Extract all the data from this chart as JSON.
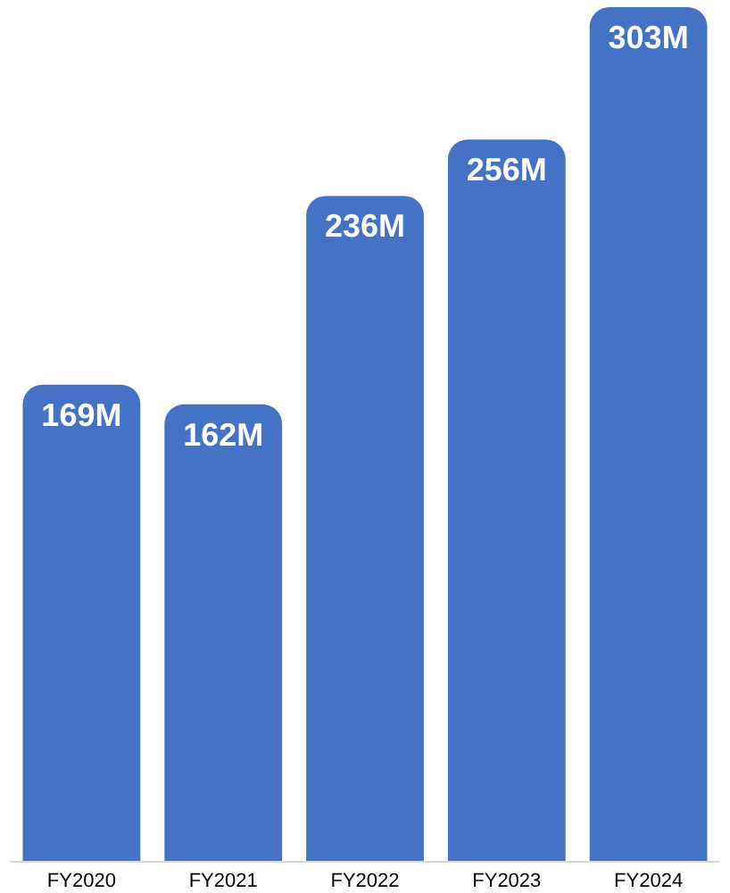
{
  "chart_data": {
    "type": "bar",
    "categories": [
      "FY2020",
      "FY2021",
      "FY2022",
      "FY2023",
      "FY2024"
    ],
    "values": [
      169,
      162,
      236,
      256,
      303
    ],
    "value_labels": [
      "169M",
      "162M",
      "236M",
      "256M",
      "303M"
    ],
    "color": "#4472c4"
  }
}
